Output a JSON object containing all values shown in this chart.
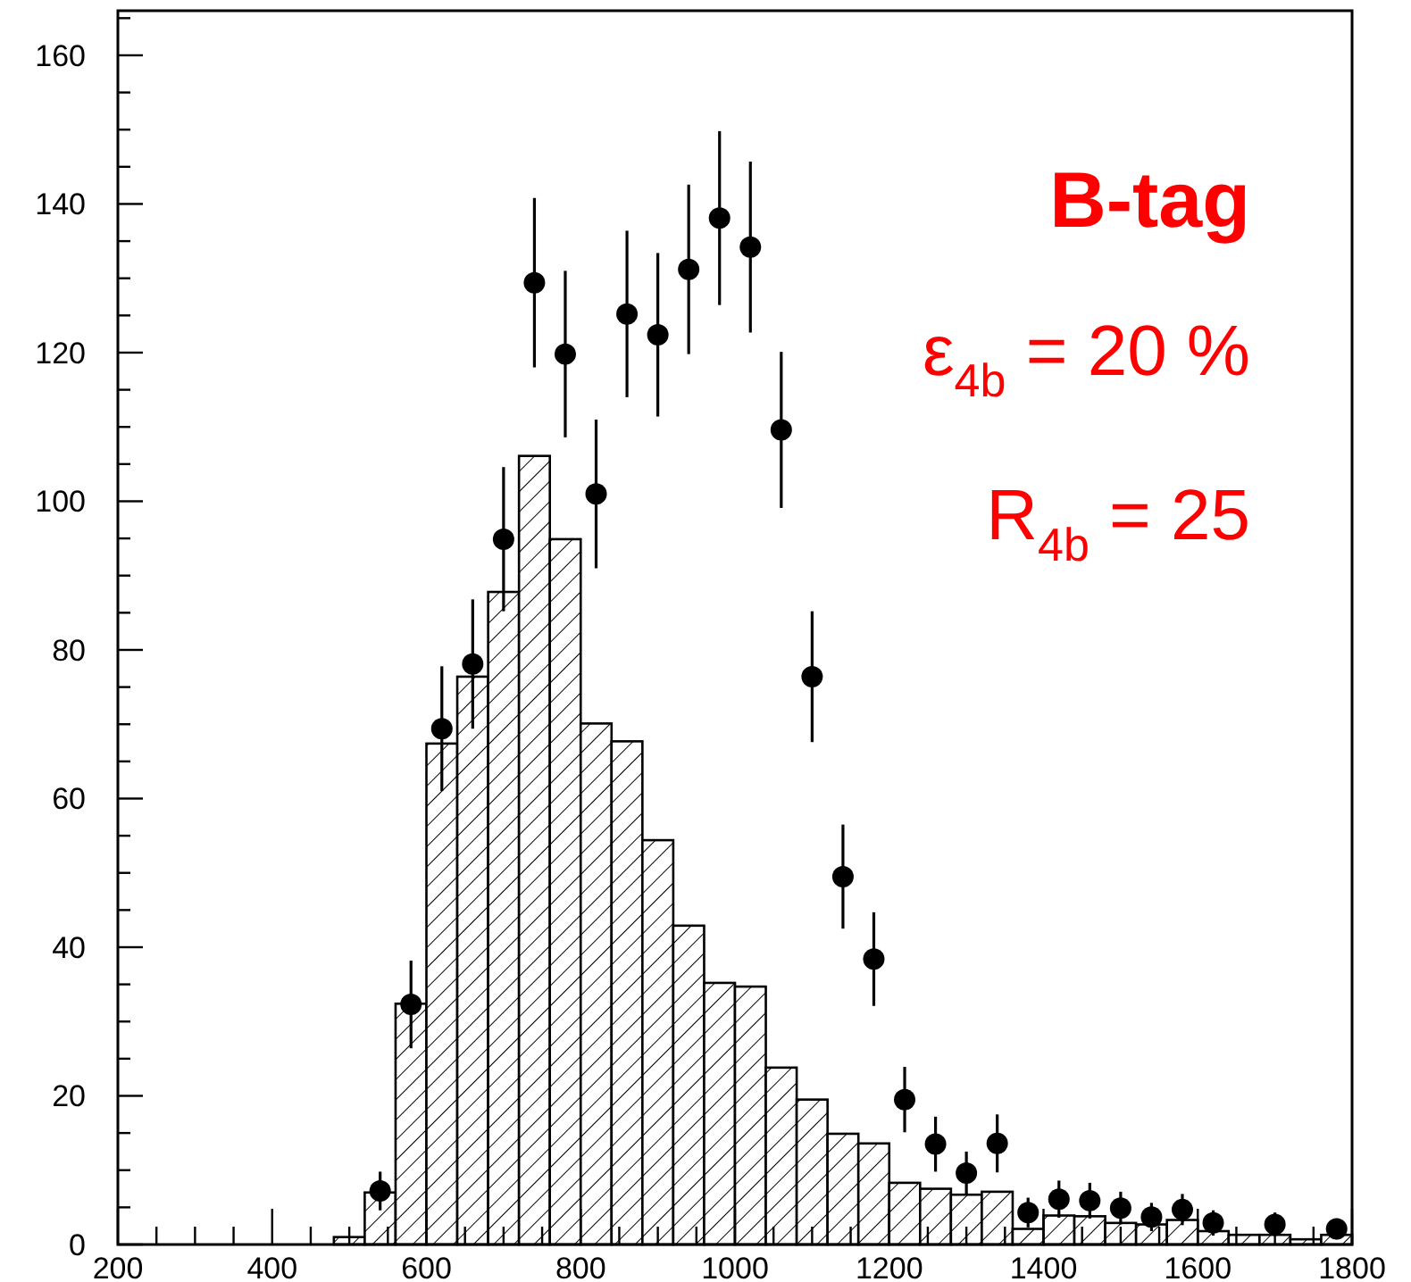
{
  "chart_data": {
    "type": "histogram",
    "xlim": [
      200,
      1800
    ],
    "ylim": [
      0,
      166
    ],
    "xticks": [
      200,
      {
        "value": 250,
        "label": null
      },
      {
        "value": 300,
        "label": null
      },
      {
        "value": 350,
        "label": null
      },
      400,
      {
        "value": 450,
        "label": null
      },
      {
        "value": 500,
        "label": null
      },
      {
        "value": 550,
        "label": null
      },
      600,
      {
        "value": 650,
        "label": null
      },
      {
        "value": 700,
        "label": null
      },
      {
        "value": 750,
        "label": null
      },
      800,
      {
        "value": 850,
        "label": null
      },
      {
        "value": 900,
        "label": null
      },
      {
        "value": 950,
        "label": null
      },
      1000,
      {
        "value": 1050,
        "label": null
      },
      {
        "value": 1100,
        "label": null
      },
      {
        "value": 1150,
        "label": null
      },
      1200,
      {
        "value": 1250,
        "label": null
      },
      {
        "value": 1300,
        "label": null
      },
      {
        "value": 1350,
        "label": null
      },
      1400,
      {
        "value": 1450,
        "label": null
      },
      {
        "value": 1500,
        "label": null
      },
      {
        "value": 1550,
        "label": null
      },
      1600,
      {
        "value": 1650,
        "label": null
      },
      {
        "value": 1700,
        "label": null
      },
      {
        "value": 1750,
        "label": null
      },
      1800
    ],
    "yticks": [
      0,
      {
        "value": 5,
        "label": null
      },
      {
        "value": 10,
        "label": null
      },
      {
        "value": 15,
        "label": null
      },
      20,
      {
        "value": 25,
        "label": null
      },
      {
        "value": 30,
        "label": null
      },
      {
        "value": 35,
        "label": null
      },
      40,
      {
        "value": 45,
        "label": null
      },
      {
        "value": 50,
        "label": null
      },
      {
        "value": 55,
        "label": null
      },
      60,
      {
        "value": 65,
        "label": null
      },
      {
        "value": 70,
        "label": null
      },
      {
        "value": 75,
        "label": null
      },
      80,
      {
        "value": 85,
        "label": null
      },
      {
        "value": 90,
        "label": null
      },
      {
        "value": 95,
        "label": null
      },
      100,
      {
        "value": 105,
        "label": null
      },
      {
        "value": 110,
        "label": null
      },
      {
        "value": 115,
        "label": null
      },
      120,
      {
        "value": 125,
        "label": null
      },
      {
        "value": 130,
        "label": null
      },
      {
        "value": 135,
        "label": null
      },
      140,
      {
        "value": 145,
        "label": null
      },
      {
        "value": 150,
        "label": null
      },
      {
        "value": 155,
        "label": null
      },
      160,
      {
        "value": 165,
        "label": null
      }
    ],
    "series": [
      {
        "color": "#000000",
        "bins": [
          480,
          520,
          560,
          600,
          640,
          680,
          720,
          760,
          800,
          840,
          880,
          920,
          960,
          1000,
          1040,
          1080,
          1120,
          1160,
          1200,
          1240,
          1280,
          1320,
          1360,
          1400,
          1440,
          1480,
          1520,
          1560,
          1600,
          1640,
          1680,
          1720,
          1760,
          1800
        ],
        "values": [
          1,
          7,
          32.4,
          67.4,
          76.4,
          87.8,
          106.1,
          94.9,
          70.1,
          67.7,
          54.4,
          42.9,
          35.2,
          34.7,
          23.8,
          19.5,
          14.9,
          13.6,
          8.3,
          7.5,
          6.7,
          7.1,
          2.1,
          3.9,
          3.8,
          2.9,
          2.7,
          3.3,
          1.8,
          1.3,
          1.3,
          0.7,
          1.3
        ]
      },
      {
        "type": "scatter",
        "color": "#000000",
        "marker": "circle",
        "x": [
          540,
          580,
          620,
          660,
          700,
          740,
          780,
          820,
          860,
          900,
          940,
          980,
          1020,
          1060,
          1100,
          1140,
          1180,
          1220,
          1260,
          1300,
          1340,
          1380,
          1420,
          1460,
          1500,
          1540,
          1580,
          1620,
          1700,
          1780
        ],
        "values": [
          7.2,
          32.3,
          69.4,
          78.1,
          94.9,
          129.4,
          119.8,
          101,
          125.2,
          122.4,
          131.2,
          138.1,
          134.2,
          109.6,
          76.4,
          49.5,
          38.4,
          19.5,
          13.5,
          9.6,
          13.6,
          4.3,
          6.1,
          5.9,
          4.9,
          3.7,
          4.7,
          2.9,
          2.7,
          2.1
        ],
        "errors": [
          2.6,
          5.9,
          8.4,
          8.7,
          9.7,
          11.4,
          11.2,
          10,
          11.2,
          11,
          11.4,
          11.7,
          11.5,
          10.5,
          8.8,
          7,
          6.3,
          4.4,
          3.7,
          2.9,
          3.9,
          2,
          2.5,
          2.4,
          2.2,
          1.9,
          2.1,
          1.7,
          1.6,
          1.4
        ]
      }
    ],
    "annotations": [
      "B-tag",
      "ε$_{4b}$ = 20 %",
      "R$_{4b}$ = 25"
    ]
  }
}
